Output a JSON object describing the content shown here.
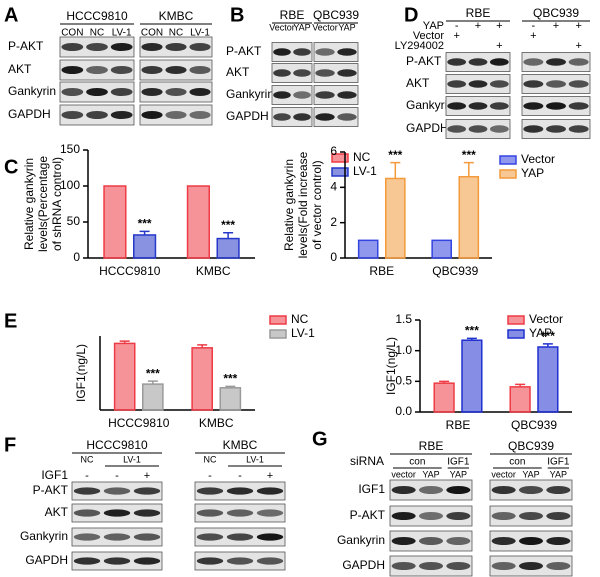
{
  "blots": {
    "A": {
      "letter": "A",
      "groups": [
        {
          "name": "HCCC9810",
          "lanes": [
            "CON",
            "NC",
            "LV-1"
          ]
        },
        {
          "name": "KMBC",
          "lanes": [
            "CON",
            "NC",
            "LV-1"
          ]
        }
      ],
      "rows": [
        "P-AKT",
        "AKT",
        "Gankyrin",
        "GAPDH"
      ]
    },
    "B": {
      "letter": "B",
      "groups": [
        {
          "name": "RBE",
          "lanes": [
            "Vector",
            "YAP"
          ]
        },
        {
          "name": "QBC939",
          "lanes": [
            "Vector",
            "YAP"
          ]
        }
      ],
      "rows": [
        "P-AKT",
        "AKT",
        "Gankyrin",
        "GAPDH"
      ]
    },
    "D": {
      "letter": "D",
      "groups": [
        {
          "name": "RBE"
        },
        {
          "name": "QBC939"
        }
      ],
      "conditions": [
        {
          "label": "YAP",
          "marks": [
            "-",
            "+",
            "+",
            "-",
            "+",
            "+"
          ]
        },
        {
          "label": "Vector",
          "marks": [
            "+",
            null,
            null,
            "+",
            null,
            null
          ]
        },
        {
          "label": "LY294002",
          "marks": [
            null,
            null,
            "+",
            null,
            null,
            "+"
          ]
        }
      ],
      "rows": [
        "P-AKT",
        "AKT",
        "Gankyrin",
        "GAPDH"
      ]
    },
    "F": {
      "letter": "F",
      "groups": [
        {
          "name": "HCCC9810",
          "lanes": [
            "NC",
            "LV-1"
          ]
        },
        {
          "name": "KMBC",
          "lanes": [
            "NC",
            "LV-1"
          ]
        }
      ],
      "conditions": [
        {
          "label": "IGF1",
          "marks": [
            "-",
            "-",
            "+",
            "-",
            "-",
            "+"
          ]
        }
      ],
      "rows": [
        "P-AKT",
        "AKT",
        "Gankyrin",
        "GAPDH"
      ]
    },
    "G": {
      "letter": "G",
      "condition_label": "siRNA",
      "groups": [
        {
          "name": "RBE",
          "lanes": [
            "con",
            "IGF1"
          ],
          "sublanes": [
            "vector",
            "YAP",
            "YAP"
          ]
        },
        {
          "name": "QBC939",
          "lanes": [
            "con",
            "IGF1"
          ],
          "sublanes": [
            "vector",
            "YAP",
            "YAP"
          ]
        }
      ],
      "rows": [
        "IGF1",
        "P-AKT",
        "Gankyrin",
        "GAPDH"
      ]
    }
  },
  "chart_letters": [
    "C",
    "E"
  ],
  "chart_data": [
    {
      "type": "bar",
      "ylabel": [
        "Relative gankyrin",
        "levels(Percentage",
        "of shRNA control)"
      ],
      "categories": [
        "HCCC9810",
        "KMBC"
      ],
      "ylim": [
        0,
        150
      ],
      "yticks": [
        0,
        50,
        100,
        150
      ],
      "series": [
        {
          "name": "NC",
          "color": "#ee3b45",
          "values": [
            100,
            100
          ]
        },
        {
          "name": "LV-1",
          "color": "#2638c8",
          "values": [
            32,
            27
          ],
          "errors": [
            5,
            8
          ],
          "annotations": [
            "***",
            "***"
          ]
        }
      ]
    },
    {
      "type": "bar",
      "ylabel": [
        "Relative gankyrin",
        "levels(Fold increase",
        "of vector control)"
      ],
      "categories": [
        "RBE",
        "QBC939"
      ],
      "ylim": [
        0,
        6
      ],
      "yticks": [
        0,
        2,
        4,
        6
      ],
      "series": [
        {
          "name": "Vector",
          "color": "#3444e0",
          "values": [
            1,
            1
          ]
        },
        {
          "name": "YAP",
          "color": "#f39a3c",
          "values": [
            4.5,
            4.6
          ],
          "errors": [
            0.9,
            0.8
          ],
          "annotations": [
            "***",
            "***"
          ]
        }
      ]
    },
    {
      "type": "bar",
      "ylabel": [
        "IGF1(ng/L)"
      ],
      "categories": [
        "HCCC9810",
        "KMBC"
      ],
      "ylim": [
        0,
        1.0
      ],
      "series": [
        {
          "name": "NC",
          "color": "#ee3b45",
          "values": [
            0.9,
            0.84
          ],
          "errors": [
            0.03,
            0.04
          ]
        },
        {
          "name": "LV-1",
          "color": "#9a9a9a",
          "values": [
            0.35,
            0.3
          ],
          "errors": [
            0.04,
            0.02
          ],
          "annotations": [
            "***",
            "***"
          ]
        }
      ]
    },
    {
      "type": "bar",
      "ylabel": [
        "IGF1(ng/L)"
      ],
      "categories": [
        "RBE",
        "QBC939"
      ],
      "ylim": [
        0,
        1.5
      ],
      "yticks": [
        {
          "value": 0,
          "label": "0.0"
        },
        {
          "value": 0.5,
          "label": "0.5"
        },
        {
          "value": 1,
          "label": "1.0"
        },
        1.5
      ],
      "series": [
        {
          "name": "Vector",
          "color": "#ee3b45",
          "values": [
            0.47,
            0.41
          ],
          "errors": [
            0.03,
            0.04
          ]
        },
        {
          "name": "YAP",
          "color": "#2030d0",
          "values": [
            1.17,
            1.06
          ],
          "errors": [
            0.03,
            0.05
          ],
          "annotations": [
            "***",
            "***"
          ]
        }
      ]
    }
  ]
}
